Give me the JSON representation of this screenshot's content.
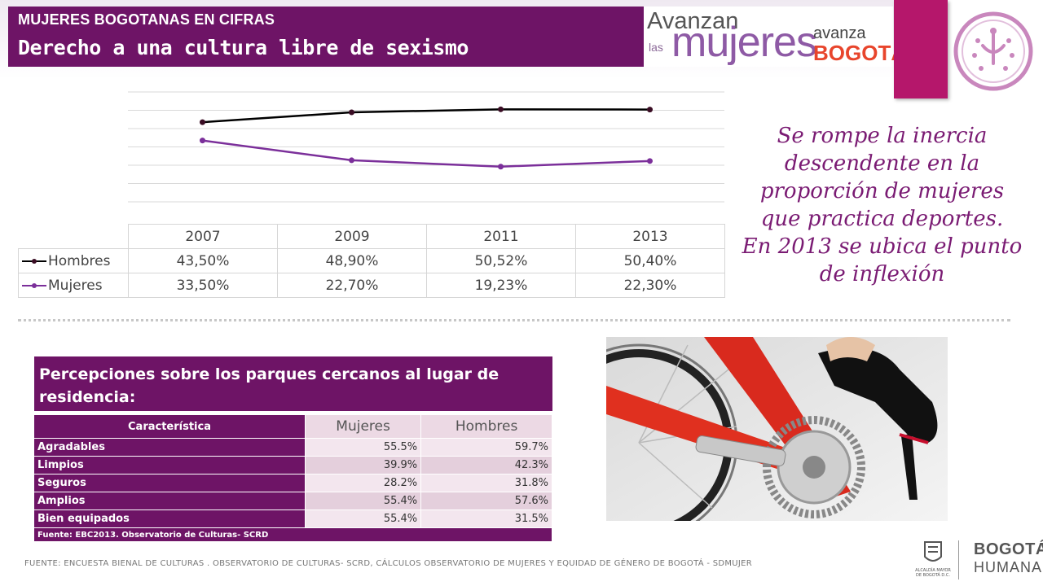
{
  "header": {
    "kicker": "MUJERES BOGOTANAS EN CIFRAS",
    "title": "Derecho a una cultura  libre de sexismo"
  },
  "logo": {
    "line1": "Avanzan",
    "las": "las",
    "mujeres": "mujeres",
    "avanza": "avanza",
    "bogota": "BOGOTÁ"
  },
  "colors": {
    "purple": "#6e1466",
    "magenta": "#b5176b",
    "hombres_line": "#000000",
    "mujeres_line": "#7b2f9a"
  },
  "chart_data": {
    "type": "line",
    "categories": [
      "2007",
      "2009",
      "2011",
      "2013"
    ],
    "series": [
      {
        "name": "Hombres",
        "labels": [
          "43,50%",
          "48,90%",
          "50,52%",
          "50,40%"
        ],
        "values": [
          43.5,
          48.9,
          50.52,
          50.4
        ]
      },
      {
        "name": "Mujeres",
        "labels": [
          "33,50%",
          "22,70%",
          "19,23%",
          "22,30%"
        ],
        "values": [
          33.5,
          22.7,
          19.23,
          22.3
        ]
      }
    ],
    "ylim": [
      0,
      60
    ],
    "grid": true,
    "legend": "data-table"
  },
  "insight": {
    "lines": [
      "Se rompe la inercia",
      "descendente en la",
      "proporción de mujeres",
      "que practica deportes.",
      "En 2013 se ubica el punto",
      "de inflexión"
    ]
  },
  "perceptions": {
    "title": "Percepciones sobre los parques cercanos  al lugar de residencia:",
    "col_char": "Característica",
    "col_women": "Mujeres",
    "col_men": "Hombres",
    "rows": [
      {
        "label": "Agradables",
        "women": "55.5%",
        "men": "59.7%"
      },
      {
        "label": "Limpios",
        "women": "39.9%",
        "men": "42.3%"
      },
      {
        "label": "Seguros",
        "women": "28.2%",
        "men": "31.8%"
      },
      {
        "label": "Amplios",
        "women": "55.4%",
        "men": "57.6%"
      },
      {
        "label": "Bien equipados",
        "women": "55.4%",
        "men": "31.5%"
      }
    ],
    "source": "Fuente: EBC2013. Observatorio de Culturas- SCRD"
  },
  "footer": {
    "source": "FUENTE: ENCUESTA BIENAL DE CULTURAS . OBSERVATORIO DE CULTURAS- SCRD, CÁLCULOS OBSERVATORIO DE MUJERES Y EQUIDAD DE GÉNERO DE BOGOTÁ - SDMUJER",
    "alcaldia": "ALCALDÍA MAYOR DE BOGOTÁ D.C.",
    "bogota": "BOGOTÁ",
    "humana": "HUMANA"
  }
}
